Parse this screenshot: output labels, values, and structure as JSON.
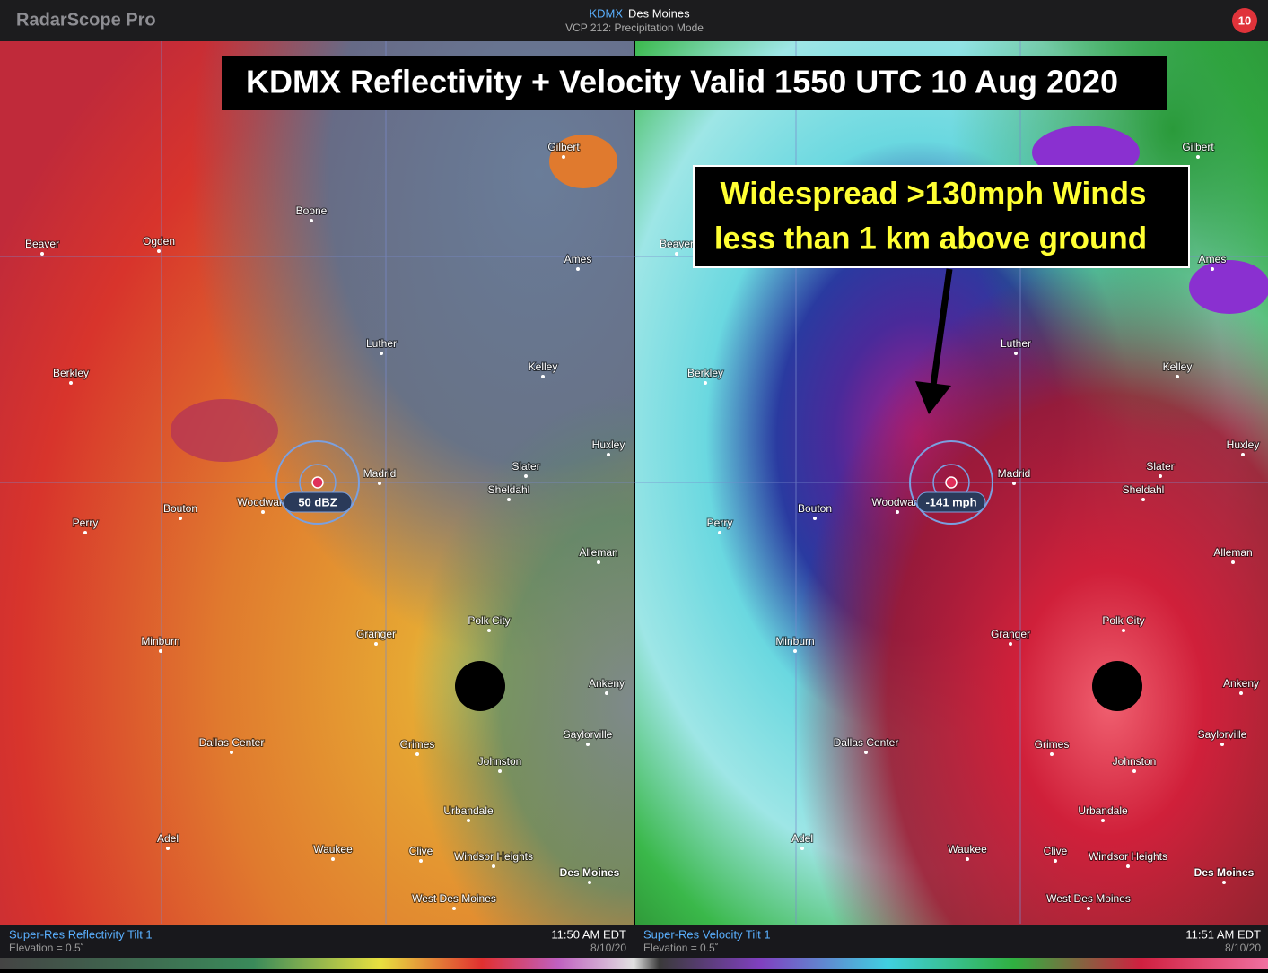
{
  "app": {
    "name": "RadarScope Pro",
    "station": "KDMX",
    "station_name": "Des Moines",
    "mode": "VCP 212: Precipitation Mode",
    "badge": "10"
  },
  "title": "KDMX Reflectivity + Velocity Valid 1550 UTC 10 Aug 2020",
  "annotation": [
    "Widespread >130mph Winds",
    "less than 1 km above ground"
  ],
  "panels": [
    {
      "product": "Super-Res Reflectivity Tilt 1",
      "elevation": "Elevation = 0.5˚",
      "time": "11:50 AM EDT",
      "date": "8/10/20",
      "readout": "50 dBZ"
    },
    {
      "product": "Super-Res Velocity Tilt 1",
      "elevation": "Elevation = 0.5˚",
      "time": "11:51 AM EDT",
      "date": "8/10/20",
      "readout": "-141 mph"
    }
  ],
  "places": [
    "Gilbert",
    "Boone",
    "Beaver",
    "Ogden",
    "Ames",
    "Luther",
    "Kelley",
    "Berkley",
    "Huxley",
    "Madrid",
    "Slater",
    "Sheldahl",
    "Woodward",
    "Bouton",
    "Perry",
    "Alleman",
    "Polk City",
    "Granger",
    "Minburn",
    "Ankeny",
    "Saylorville",
    "Dallas Center",
    "Grimes",
    "Johnston",
    "Urbandale",
    "Adel",
    "Waukee",
    "Clive",
    "Windsor Heights",
    "Des Moines",
    "West Des Moines"
  ]
}
